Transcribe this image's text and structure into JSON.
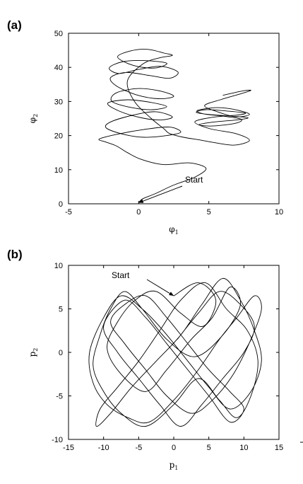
{
  "chart_data": [
    {
      "panel_label": "(a)",
      "type": "line",
      "xlabel": "φ",
      "xlabel_sub": "1",
      "ylabel": "φ",
      "ylabel_sub": "2",
      "xlim": [
        -5,
        10
      ],
      "ylim": [
        0,
        50
      ],
      "xticks": [
        "-5",
        "0",
        "5",
        "10"
      ],
      "yticks": [
        "0",
        "10",
        "20",
        "30",
        "40",
        "50"
      ],
      "grid": false,
      "annotation": {
        "text": "Start",
        "at": [
          0,
          0.3
        ]
      },
      "series": [
        {
          "x": [
            0,
            0.3,
            1.2,
            2.5,
            4.0,
            4.8,
            3.6,
            1.8,
            0.2,
            -0.8,
            -1.6,
            -2.4,
            -2.8,
            -1.4,
            0.4,
            2.2,
            3.0,
            2.0,
            0.4,
            -1.0,
            -2.3,
            -2.0,
            -0.4,
            1.2,
            2.4,
            1.6,
            0.2,
            -1.4,
            -2.2,
            -0.8,
            0.9,
            2.0,
            1.0,
            -0.5,
            -1.9,
            -1.6,
            0,
            1.6,
            2.5,
            1.4,
            -0.2,
            -1.6,
            -2.0,
            -0.9,
            0.8,
            2.2,
            2.8,
            1.6,
            0,
            -1.4,
            -2.1,
            -1.2,
            0.4,
            2.0,
            1.1,
            -0.4,
            -1.5,
            -0.6,
            0.6,
            1.8,
            2.4,
            1.5,
            0.3,
            -0.8,
            -0.3,
            0.9,
            1.8,
            2.2,
            3.2,
            4.4,
            5.3,
            6.8,
            7.9,
            6.9,
            5.1,
            4.0,
            5.3,
            7.0,
            7.6,
            6.3,
            4.8,
            4.1,
            5.0,
            6.9,
            7.8,
            7.0,
            5.4,
            4.3,
            5.2,
            6.9,
            7.3,
            6.0,
            4.6,
            4.2,
            5.6,
            7.0,
            7.9,
            6.9,
            5.6,
            4.7,
            5.9,
            7.4,
            8.0,
            7.3,
            6.0
          ],
          "y": [
            0.3,
            1.5,
            3.0,
            5.5,
            7.8,
            10.4,
            12.0,
            11.5,
            13.0,
            15.0,
            17.0,
            18.2,
            19.0,
            20.5,
            21.8,
            22.5,
            21.0,
            20.0,
            19.5,
            20.3,
            22.2,
            24.0,
            26.0,
            27.0,
            25.5,
            24.6,
            25.2,
            27.2,
            29.5,
            30.5,
            29.7,
            28.5,
            27.6,
            28.2,
            30.0,
            32.5,
            33.8,
            33.0,
            31.5,
            30.8,
            32.0,
            34.6,
            37.0,
            38.5,
            37.6,
            36.8,
            38.6,
            40.3,
            39.4,
            38.2,
            39.8,
            41.6,
            42.0,
            41.2,
            39.8,
            40.6,
            43.0,
            44.8,
            45.3,
            44.2,
            43.5,
            42.8,
            41.0,
            36.0,
            30.0,
            25.0,
            22.0,
            20.6,
            19.5,
            18.7,
            18.0,
            17.2,
            18.6,
            20.6,
            22.0,
            24.0,
            25.4,
            26.0,
            26.6,
            27.2,
            27.6,
            26.8,
            26.2,
            25.6,
            25.2,
            24.6,
            24.0,
            23.2,
            22.8,
            23.6,
            24.8,
            25.7,
            26.4,
            27.4,
            28.2,
            27.5,
            26.2,
            25.5,
            27.0,
            28.8,
            30.6,
            32.4,
            33.3,
            33.0,
            31.8
          ]
        }
      ]
    },
    {
      "panel_label": "(b)",
      "type": "line",
      "xlabel": "p",
      "xlabel_sub": "1",
      "ylabel": "p",
      "ylabel_sub": "2",
      "xlim": [
        -15,
        15
      ],
      "ylim": [
        -10,
        10
      ],
      "xticks": [
        "-15",
        "-10",
        "-5",
        "0",
        "5",
        "10",
        "15"
      ],
      "yticks": [
        "-10",
        "-5",
        "0",
        "5",
        "10"
      ],
      "grid": false,
      "annotation": {
        "text": "Start",
        "at": [
          0,
          6.5
        ]
      },
      "series": [
        {
          "x": [
            0,
            3.5,
            6.0,
            4.2,
            1.0,
            -2.5,
            -5.5,
            -8.0,
            -9.5,
            -7.5,
            -4.0,
            -1.0,
            2.5,
            5.5,
            8.0,
            9.5,
            7.0,
            3.0,
            -1.0,
            -4.5,
            -7.0,
            -9.0,
            -10.5,
            -11.5,
            -10.0,
            -7.5,
            -4.0,
            0,
            3.5,
            6.5,
            9.0,
            11.0,
            12.0,
            10.5,
            7.5,
            4.5,
            1.0,
            -2.0,
            -5.0,
            -8.0,
            -10.5,
            -11.0,
            -9.0,
            -6.0,
            -2.5,
            1.0,
            4.0,
            7.0,
            9.5,
            11.5,
            12.5,
            11.0,
            8.0,
            5.0,
            2.0,
            -1.5,
            -4.5,
            -7.5,
            -10.0,
            -12.0,
            -11.5,
            -9.5,
            -6.5,
            -3.5,
            0,
            3.5,
            6.5,
            9.0,
            11.5,
            12.5,
            11.0,
            8.5,
            5.5,
            2.5,
            -1.0,
            -4.0,
            -7.0,
            -9.0,
            -7.0,
            -4.0,
            -1.0,
            2.0,
            5.0,
            8.0,
            10.0,
            8.0,
            5.0,
            2.0,
            -1.0,
            -4.0,
            -7.0,
            -10.0,
            -8.0,
            -5.0,
            -2.0,
            1.0,
            4.0,
            7.0,
            10.0,
            11.5,
            9.5,
            6.5,
            3.5,
            0.5
          ],
          "y": [
            6.5,
            8.0,
            6.0,
            3.0,
            4.5,
            7.0,
            6.0,
            3.5,
            0.5,
            -2.5,
            -4.5,
            -2.0,
            1.5,
            4.0,
            7.5,
            5.5,
            2.0,
            -0.5,
            1.5,
            5.0,
            7.0,
            5.0,
            2.0,
            -1.5,
            -4.5,
            -7.0,
            -8.5,
            -6.0,
            -3.0,
            -5.5,
            -7.5,
            -5.0,
            -1.0,
            2.5,
            5.0,
            8.0,
            6.0,
            2.5,
            -1.0,
            -4.0,
            -6.5,
            -8.5,
            -7.0,
            -4.0,
            -1.0,
            2.0,
            5.5,
            8.5,
            6.0,
            2.5,
            -1.0,
            -4.5,
            -6.5,
            -4.0,
            -1.0,
            2.5,
            5.0,
            6.5,
            4.0,
            0,
            -3.5,
            -6.0,
            -7.5,
            -8.0,
            -5.5,
            -2.0,
            1.5,
            4.0,
            6.5,
            5.0,
            1.5,
            -2.5,
            -5.5,
            -7.0,
            -5.0,
            -2.0,
            1.0,
            3.5,
            5.5,
            6.5,
            4.0,
            1.0,
            -2.0,
            -4.5,
            -6.5,
            -8.0,
            -5.0,
            -2.0,
            1.0,
            4.0,
            6.0,
            3.0,
            0,
            -3.0,
            -6.0,
            -8.5,
            -6.0,
            -3.0,
            0,
            3.0,
            5.5,
            7.0,
            4.5,
            1.5
          ]
        }
      ]
    }
  ]
}
